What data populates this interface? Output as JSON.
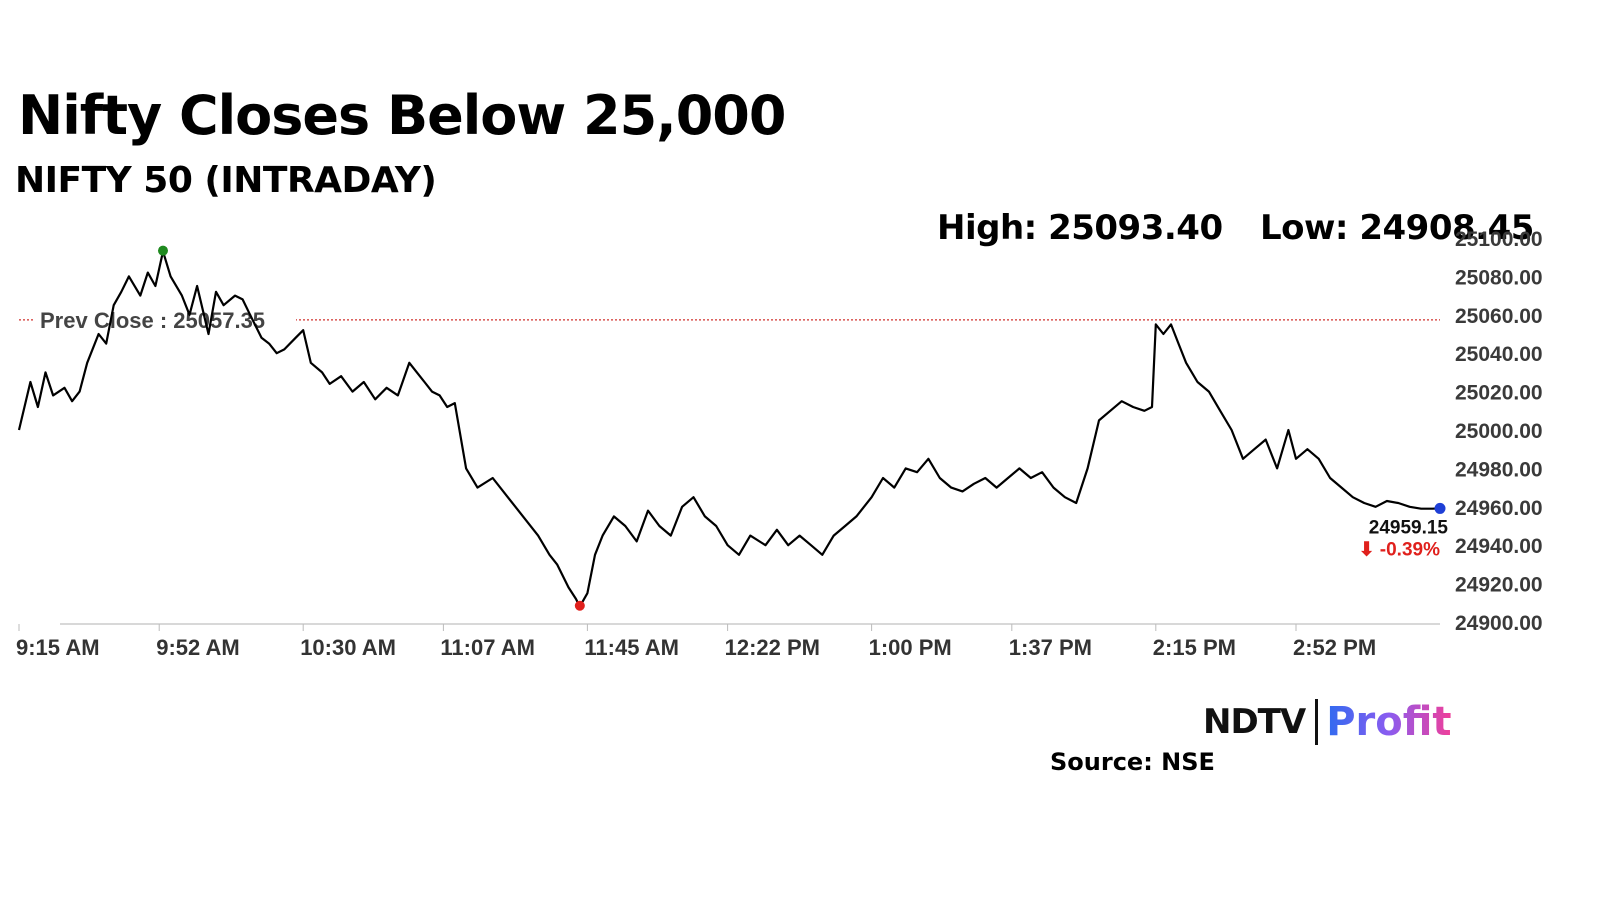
{
  "header": {
    "title": "Nifty Closes Below 25,000",
    "subtitle": "NIFTY 50 (INTRADAY)",
    "high_text": "High: 25093.40",
    "low_text": "Low: 24908.45"
  },
  "footer": {
    "logo_ndtv": "NDTV",
    "logo_profit": "Profit",
    "source": "Source: NSE"
  },
  "colors": {
    "line": "#000000",
    "prev_close_line": "#d0312d",
    "high_marker": "#1f8a1f",
    "low_marker": "#e0201c",
    "last_marker": "#1e3fd6",
    "change_negative": "#e0201c"
  },
  "chart_data": {
    "type": "line",
    "title": "Nifty Closes Below 25,000",
    "subtitle": "NIFTY 50 (INTRADAY)",
    "x_tick_labels": [
      "9:15 AM",
      "9:52 AM",
      "10:30 AM",
      "11:07 AM",
      "11:45 AM",
      "12:22 PM",
      "1:00 PM",
      "1:37 PM",
      "2:15 PM",
      "2:52 PM"
    ],
    "y_tick_labels": [
      "25100.00",
      "25080.00",
      "25060.00",
      "25040.00",
      "25020.00",
      "25000.00",
      "24980.00",
      "24960.00",
      "24940.00",
      "24920.00",
      "24900.00"
    ],
    "ylim": [
      24900,
      25100
    ],
    "x_range": [
      "9:15 AM",
      "3:30 PM"
    ],
    "y_axis_side": "right",
    "grid": false,
    "prev_close": 25057.35,
    "prev_close_label": "Prev Close : 25057.35",
    "high": 25093.4,
    "low": 24908.45,
    "last": 24959.15,
    "last_label": "24959.15",
    "change_label": "⬇ -0.39%",
    "series": [
      {
        "x": [
          "9:15 AM",
          "9:18 AM",
          "9:20 AM",
          "9:22 AM",
          "9:24 AM",
          "9:27 AM",
          "9:29 AM",
          "9:31 AM",
          "9:33 AM",
          "9:36 AM",
          "9:38 AM",
          "9:40 AM",
          "9:42 AM",
          "9:44 AM",
          "9:47 AM",
          "9:49 AM",
          "9:51 AM",
          "9:53 AM",
          "9:55 AM",
          "9:58 AM",
          "10:00 AM",
          "10:02 AM",
          "10:05 AM",
          "10:07 AM",
          "10:09 AM",
          "10:12 AM",
          "10:14 AM",
          "10:16 AM",
          "10:19 AM",
          "10:21 AM",
          "10:23 AM",
          "10:25 AM",
          "10:28 AM",
          "10:30 AM",
          "10:32 AM",
          "10:35 AM",
          "10:37 AM",
          "10:40 AM",
          "10:43 AM",
          "10:46 AM",
          "10:49 AM",
          "10:52 AM",
          "10:55 AM",
          "10:58 AM",
          "11:00 AM",
          "11:02 AM",
          "11:04 AM",
          "11:06 AM",
          "11:08 AM",
          "11:10 AM",
          "11:13 AM",
          "11:16 AM",
          "11:20 AM",
          "11:24 AM",
          "11:28 AM",
          "11:32 AM",
          "11:35 AM",
          "11:37 AM",
          "11:40 AM",
          "11:42 AM",
          "11:43 AM",
          "11:45 AM",
          "11:47 AM",
          "11:49 AM",
          "11:52 AM",
          "11:55 AM",
          "11:58 AM",
          "12:01 PM",
          "12:04 PM",
          "12:07 PM",
          "12:10 PM",
          "12:13 PM",
          "12:16 PM",
          "12:19 PM",
          "12:22 PM",
          "12:25 PM",
          "12:28 PM",
          "12:32 PM",
          "12:35 PM",
          "12:38 PM",
          "12:41 PM",
          "12:44 PM",
          "12:47 PM",
          "12:50 PM",
          "12:53 PM",
          "12:56 PM",
          "1:00 PM",
          "1:03 PM",
          "1:06 PM",
          "1:09 PM",
          "1:12 PM",
          "1:15 PM",
          "1:18 PM",
          "1:21 PM",
          "1:24 PM",
          "1:27 PM",
          "1:30 PM",
          "1:33 PM",
          "1:36 PM",
          "1:39 PM",
          "1:42 PM",
          "1:45 PM",
          "1:48 PM",
          "1:51 PM",
          "1:54 PM",
          "1:57 PM",
          "2:00 PM",
          "2:03 PM",
          "2:06 PM",
          "2:09 PM",
          "2:12 PM",
          "2:14 PM",
          "2:15 PM",
          "2:17 PM",
          "2:19 PM",
          "2:21 PM",
          "2:23 PM",
          "2:26 PM",
          "2:29 PM",
          "2:32 PM",
          "2:35 PM",
          "2:38 PM",
          "2:41 PM",
          "2:44 PM",
          "2:47 PM",
          "2:50 PM",
          "2:52 PM",
          "2:55 PM",
          "2:58 PM",
          "3:01 PM",
          "3:04 PM",
          "3:07 PM",
          "3:10 PM",
          "3:13 PM",
          "3:16 PM",
          "3:19 PM",
          "3:22 PM",
          "3:25 PM",
          "3:28 PM",
          "3:30 PM"
        ],
        "y": [
          25000,
          25025,
          25012,
          25030,
          25018,
          25022,
          25015,
          25020,
          25035,
          25050,
          25045,
          25065,
          25072,
          25080,
          25070,
          25082,
          25075,
          25093,
          25080,
          25070,
          25060,
          25075,
          25050,
          25072,
          25065,
          25070,
          25068,
          25060,
          25048,
          25045,
          25040,
          25042,
          25048,
          25052,
          25035,
          25030,
          25024,
          25028,
          25020,
          25025,
          25016,
          25022,
          25018,
          25035,
          25030,
          25025,
          25020,
          25018,
          25012,
          25014,
          24980,
          24970,
          24975,
          24965,
          24955,
          24945,
          24935,
          24930,
          24918,
          24912,
          24908,
          24915,
          24935,
          24945,
          24955,
          24950,
          24942,
          24958,
          24950,
          24945,
          24960,
          24965,
          24955,
          24950,
          24940,
          24935,
          24945,
          24940,
          24948,
          24940,
          24945,
          24940,
          24935,
          24945,
          24950,
          24955,
          24965,
          24975,
          24970,
          24980,
          24978,
          24985,
          24975,
          24970,
          24968,
          24972,
          24975,
          24970,
          24975,
          24980,
          24975,
          24978,
          24970,
          24965,
          24962,
          24980,
          25005,
          25010,
          25015,
          25012,
          25010,
          25012,
          25055,
          25050,
          25055,
          25045,
          25035,
          25025,
          25020,
          25010,
          25000,
          24985,
          24990,
          24995,
          24980,
          25000,
          24985,
          24990,
          24985,
          24975,
          24970,
          24965,
          24962,
          24960,
          24963,
          24962,
          24960,
          24959,
          24959,
          24959.15
        ]
      }
    ]
  }
}
